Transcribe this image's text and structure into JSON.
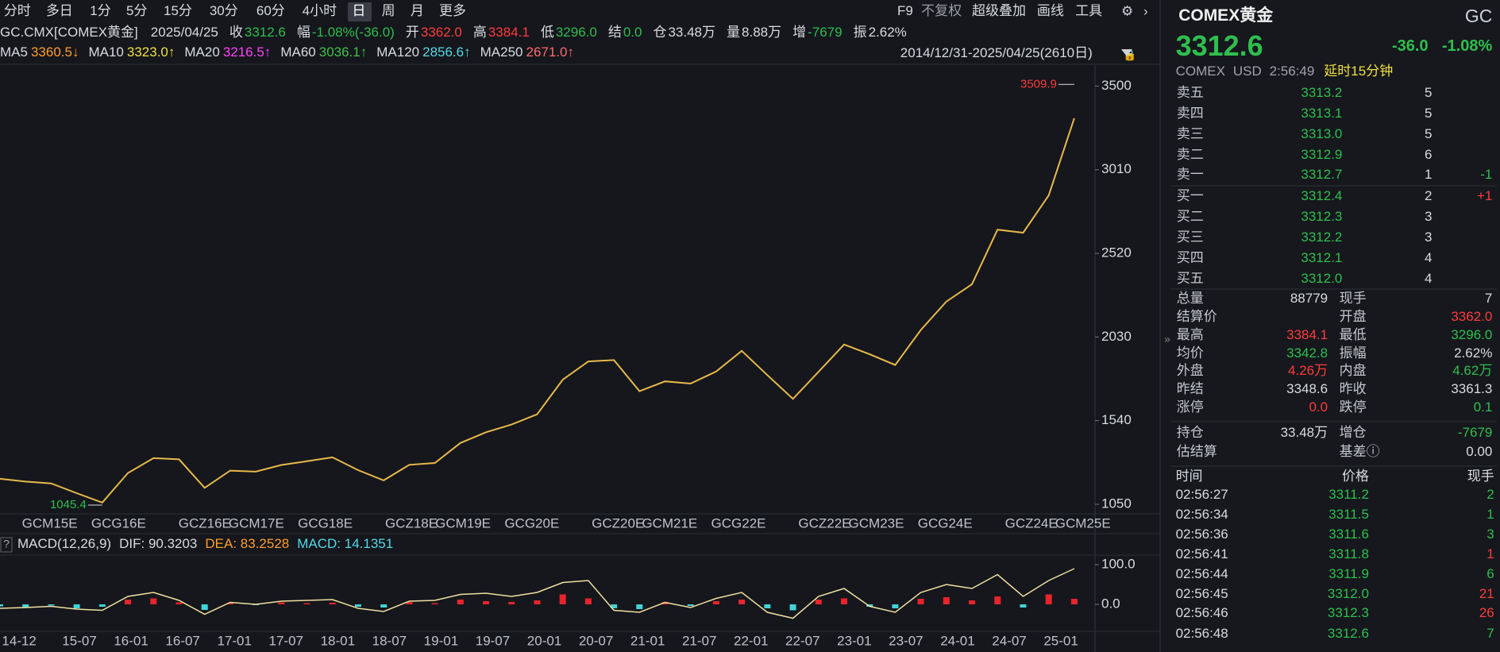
{
  "toolbar": {
    "tabs": [
      {
        "label": "分时"
      },
      {
        "label": "多日"
      },
      {
        "label": "1分"
      },
      {
        "label": "5分"
      },
      {
        "label": "15分"
      },
      {
        "label": "30分"
      },
      {
        "label": "60分"
      },
      {
        "label": "4小时"
      },
      {
        "label": "日",
        "selected": true
      },
      {
        "label": "周"
      },
      {
        "label": "月"
      },
      {
        "label": "更多"
      }
    ],
    "tools": [
      "F9",
      "不复权",
      "超级叠加",
      "画线",
      "工具"
    ]
  },
  "info": {
    "symbol": "GC.CMX[COMEX黄金]",
    "date": "2025/04/25",
    "fields": [
      {
        "label": "收",
        "value": "3312.6",
        "color": "#2fbf4e"
      },
      {
        "label": "幅",
        "value": "-1.08%(-36.0)",
        "color": "#2fbf4e"
      },
      {
        "label": "开",
        "value": "3362.0",
        "color": "#ff3b3b"
      },
      {
        "label": "高",
        "value": "3384.1",
        "color": "#ff3b3b"
      },
      {
        "label": "低",
        "value": "3296.0",
        "color": "#2fbf4e"
      },
      {
        "label": "结",
        "value": "0.0",
        "color": "#2fbf4e"
      },
      {
        "label": "仓",
        "value": "33.48万",
        "color": "#d8dbe0"
      },
      {
        "label": "量",
        "value": "8.88万",
        "color": "#d8dbe0"
      },
      {
        "label": "增",
        "value": "-7679",
        "color": "#2fbf4e"
      },
      {
        "label": "振",
        "value": "2.62%",
        "color": "#d8dbe0"
      }
    ]
  },
  "ma": [
    {
      "name": "MA5",
      "value": "3360.5↓",
      "color": "#ff9d2a"
    },
    {
      "name": "MA10",
      "value": "3323.0↑",
      "color": "#f0e040"
    },
    {
      "name": "MA20",
      "value": "3216.5↑",
      "color": "#ff40ff"
    },
    {
      "name": "MA60",
      "value": "3036.1↑",
      "color": "#3fc24b"
    },
    {
      "name": "MA120",
      "value": "2856.6↑",
      "color": "#56d8e8"
    },
    {
      "name": "MA250",
      "value": "2671.0↑",
      "color": "#ff6a6a"
    }
  ],
  "range": "2014/12/31-2025/04/25(2610日)",
  "price_chart": {
    "ylim": [
      994,
      3623
    ],
    "yticks": [
      1050,
      1540,
      2030,
      2520,
      3010,
      3500
    ],
    "x_labels": [
      "GCM15E",
      "GCG16E",
      "GCZ16E",
      "GCM17E",
      "GCG18E",
      "GCZ18E",
      "GCM19E",
      "GCG20E",
      "GCZ20E",
      "GCM21E",
      "GCG22E",
      "GCZ22E",
      "GCM23E",
      "GCG24E",
      "GCZ24E",
      "GCM25E"
    ],
    "color": "#e8b94a",
    "values": [
      1199,
      1183,
      1172,
      1115,
      1060,
      1233,
      1320,
      1313,
      1146,
      1247,
      1241,
      1280,
      1302,
      1325,
      1250,
      1190,
      1281,
      1292,
      1409,
      1472,
      1517,
      1577,
      1780,
      1887,
      1895,
      1713,
      1770,
      1757,
      1828,
      1949,
      1807,
      1668,
      1826,
      1986,
      1929,
      1866,
      2071,
      2238,
      2339,
      2659,
      2641,
      2860,
      3312
    ],
    "high": 3509.9,
    "low": 1045.4
  },
  "macd": {
    "name": "MACD(12,26,9)",
    "dif": "DIF: 90.3203",
    "dea": "DEA: 83.2528",
    "macd": "MACD: 14.1351",
    "ylim": [
      -68,
      124
    ],
    "yticks": [
      {
        "value": 100,
        "label": "100.0"
      },
      {
        "value": 0,
        "label": "0.0"
      }
    ],
    "dates": [
      "14-12",
      "15-07",
      "16-01",
      "16-07",
      "17-01",
      "17-07",
      "18-01",
      "18-07",
      "19-01",
      "19-07",
      "20-01",
      "20-07",
      "21-01",
      "21-07",
      "22-01",
      "22-07",
      "23-01",
      "23-07",
      "24-01",
      "24-07",
      "25-01"
    ],
    "histogram": [
      -5,
      -8,
      -3,
      -10,
      -6,
      12,
      15,
      5,
      -14,
      4,
      -2,
      5,
      3,
      4,
      -6,
      -8,
      6,
      3,
      12,
      8,
      6,
      10,
      25,
      15,
      -10,
      -12,
      6,
      -4,
      8,
      12,
      -10,
      -15,
      12,
      15,
      -6,
      -10,
      14,
      18,
      10,
      20,
      -8,
      25,
      14
    ],
    "dif_values": [
      -10,
      -8,
      -5,
      -12,
      -15,
      20,
      30,
      10,
      -25,
      5,
      0,
      8,
      10,
      12,
      -10,
      -18,
      8,
      10,
      25,
      28,
      20,
      30,
      55,
      60,
      -15,
      -20,
      5,
      -8,
      15,
      30,
      -20,
      -35,
      20,
      40,
      -5,
      -20,
      30,
      50,
      40,
      75,
      20,
      60,
      90
    ]
  },
  "quote": {
    "name": "COMEX黄金",
    "code": "GC",
    "price": "3312.6",
    "change": "-36.0",
    "pct": "-1.08%",
    "exchange": "COMEX",
    "currency": "USD",
    "time": "2:56:49",
    "delay": "延时15分钟"
  },
  "order_book": [
    {
      "label": "卖五",
      "price": "3313.2",
      "qty": "5"
    },
    {
      "label": "卖四",
      "price": "3313.1",
      "qty": "5"
    },
    {
      "label": "卖三",
      "price": "3313.0",
      "qty": "5"
    },
    {
      "label": "卖二",
      "price": "3312.9",
      "qty": "6"
    },
    {
      "label": "卖一",
      "price": "3312.7",
      "qty": "1",
      "change": "-1",
      "change_color": "#2fbf4e"
    },
    {
      "label": "买一",
      "price": "3312.4",
      "qty": "2",
      "change": "+1",
      "change_color": "#ff3b3b"
    },
    {
      "label": "买二",
      "price": "3312.3",
      "qty": "3"
    },
    {
      "label": "买三",
      "price": "3312.2",
      "qty": "3"
    },
    {
      "label": "买四",
      "price": "3312.1",
      "qty": "4"
    },
    {
      "label": "买五",
      "price": "3312.0",
      "qty": "4"
    }
  ],
  "stats": [
    [
      {
        "label": "总量",
        "value": "88779"
      },
      {
        "label": "现手",
        "value": "7"
      }
    ],
    [
      {
        "label": "结算价"
      },
      {
        "label": "开盘",
        "value": "3362.0",
        "color": "#ff3b3b"
      }
    ],
    [
      {
        "label": "最高",
        "value": "3384.1",
        "color": "#ff3b3b"
      },
      {
        "label": "最低",
        "value": "3296.0",
        "color": "#2fbf4e"
      }
    ],
    [
      {
        "label": "均价",
        "value": "3342.8",
        "color": "#2fbf4e"
      },
      {
        "label": "振幅",
        "value": "2.62%"
      }
    ],
    [
      {
        "label": "外盘",
        "value": "4.26万",
        "color": "#ff3b3b"
      },
      {
        "label": "内盘",
        "value": "4.62万",
        "color": "#2fbf4e"
      }
    ],
    [
      {
        "label": "昨结",
        "value": "3348.6"
      },
      {
        "label": "昨收",
        "value": "3361.3"
      }
    ],
    [
      {
        "label": "涨停",
        "value": "0.0",
        "color": "#ff3b3b"
      },
      {
        "label": "跌停",
        "value": "0.1",
        "color": "#2fbf4e"
      }
    ],
    [
      {
        "label": "持仓",
        "value": "33.48万"
      },
      {
        "label": "增仓",
        "value": "-7679",
        "color": "#2fbf4e"
      }
    ],
    [
      {
        "label": "估结算"
      },
      {
        "label": "基差ⓘ",
        "value": "0.00"
      }
    ]
  ],
  "ticks": {
    "header": [
      "时间",
      "价格",
      "现手"
    ],
    "rows": [
      {
        "time": "02:56:27",
        "price": "3311.2",
        "qty": "2",
        "qty_color": "#2fbf4e"
      },
      {
        "time": "02:56:34",
        "price": "3311.5",
        "qty": "1",
        "qty_color": "#2fbf4e"
      },
      {
        "time": "02:56:36",
        "price": "3311.6",
        "qty": "3",
        "qty_color": "#2fbf4e"
      },
      {
        "time": "02:56:41",
        "price": "3311.8",
        "qty": "1",
        "qty_color": "#ff3b3b"
      },
      {
        "time": "02:56:44",
        "price": "3311.9",
        "qty": "6",
        "qty_color": "#2fbf4e"
      },
      {
        "time": "02:56:45",
        "price": "3312.0",
        "qty": "21",
        "qty_color": "#ff3b3b"
      },
      {
        "time": "02:56:46",
        "price": "3312.3",
        "qty": "26",
        "qty_color": "#ff3b3b"
      },
      {
        "time": "02:56:48",
        "price": "3312.6",
        "qty": "7",
        "qty_color": "#2fbf4e"
      }
    ]
  }
}
